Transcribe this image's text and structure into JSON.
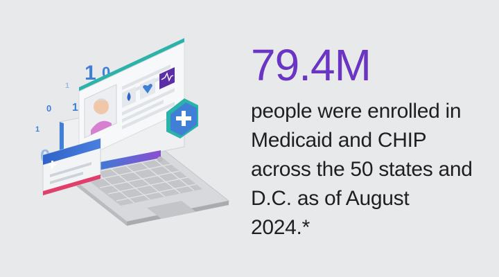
{
  "stat": {
    "value": "79.4M",
    "caption": "people were enrolled in Medicaid and CHIP across the 50 states and D.C. as of August 2024.*"
  },
  "illustration": {
    "floating_digits": [
      "1",
      "0",
      "1",
      "1",
      "0",
      "1",
      "1",
      "0"
    ]
  },
  "colors": {
    "background": "#e8e9ea",
    "accent_purple": "#6b35c4",
    "caption_text": "#1f1f1f",
    "teal": "#2bb3a9",
    "blue": "#2f63c8"
  },
  "icons": [
    "laptop-icon",
    "patient-profile-icon",
    "water-drop-icon",
    "heart-icon",
    "heart-rate-icon",
    "medical-cross-icon",
    "id-card-icon"
  ]
}
